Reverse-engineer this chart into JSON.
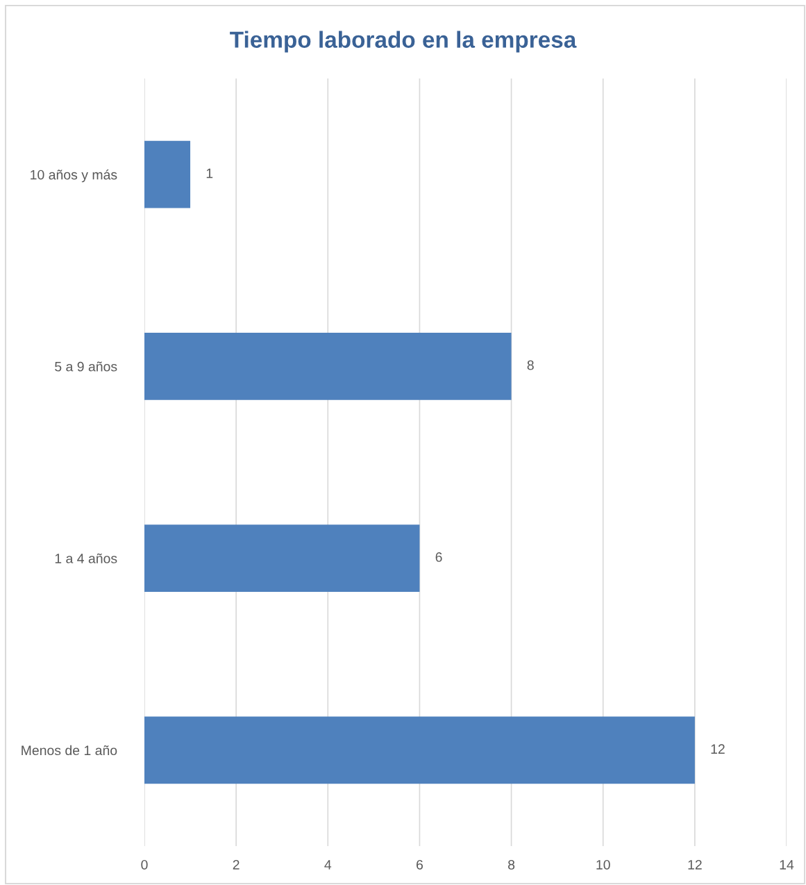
{
  "chart_data": {
    "type": "bar",
    "orientation": "horizontal",
    "title": "Tiempo laborado en la empresa",
    "categories": [
      "10 años y más",
      "5 a 9 años",
      "1 a 4 años",
      "Menos de 1 año"
    ],
    "values": [
      1,
      8,
      6,
      12
    ],
    "color": "#4f81bd",
    "xlim": [
      0,
      14
    ],
    "xticks": [
      0,
      2,
      4,
      6,
      8,
      10,
      12,
      14
    ],
    "grid": "x",
    "data_labels": true
  }
}
